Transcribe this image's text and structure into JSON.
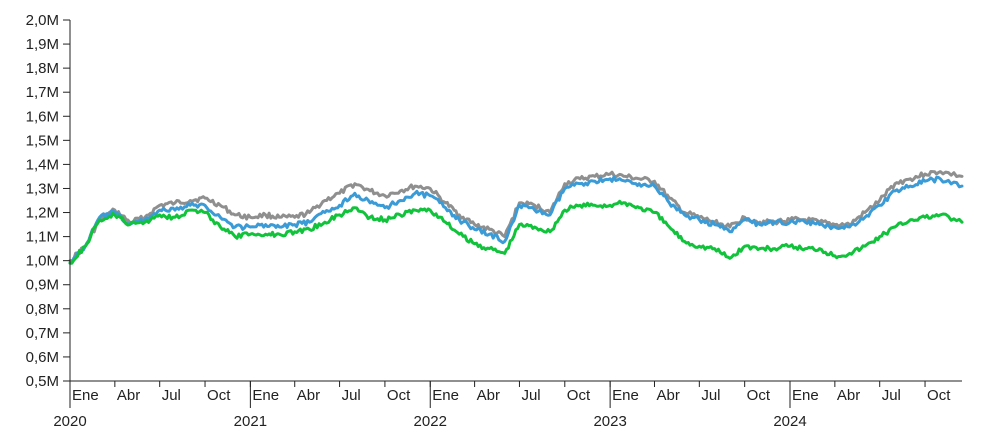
{
  "chart_data": {
    "type": "line",
    "title": "",
    "xlabel": "",
    "ylabel": "",
    "x_range": [
      "2020-01-01",
      "2024-12-15"
    ],
    "ylim": [
      500000,
      2000000
    ],
    "grid": false,
    "legend": "none",
    "y_ticks": [
      {
        "value": 500000,
        "label": "0,5M"
      },
      {
        "value": 600000,
        "label": "0,6M"
      },
      {
        "value": 700000,
        "label": "0,7M"
      },
      {
        "value": 800000,
        "label": "0,8M"
      },
      {
        "value": 900000,
        "label": "0,9M"
      },
      {
        "value": 1000000,
        "label": "1,0M"
      },
      {
        "value": 1100000,
        "label": "1,1M"
      },
      {
        "value": 1200000,
        "label": "1,2M"
      },
      {
        "value": 1300000,
        "label": "1,3M"
      },
      {
        "value": 1400000,
        "label": "1,4M"
      },
      {
        "value": 1500000,
        "label": "1,5M"
      },
      {
        "value": 1600000,
        "label": "1,6M"
      },
      {
        "value": 1700000,
        "label": "1,7M"
      },
      {
        "value": 1800000,
        "label": "1,8M"
      },
      {
        "value": 1900000,
        "label": "1,9M"
      },
      {
        "value": 2000000,
        "label": "2,0M"
      }
    ],
    "x_month_ticks": [
      {
        "date": "2020-01-01",
        "label": "Ene"
      },
      {
        "date": "2020-04-01",
        "label": "Abr"
      },
      {
        "date": "2020-07-01",
        "label": "Jul"
      },
      {
        "date": "2020-10-01",
        "label": "Oct"
      },
      {
        "date": "2021-01-01",
        "label": "Ene"
      },
      {
        "date": "2021-04-01",
        "label": "Abr"
      },
      {
        "date": "2021-07-01",
        "label": "Jul"
      },
      {
        "date": "2021-10-01",
        "label": "Oct"
      },
      {
        "date": "2022-01-01",
        "label": "Ene"
      },
      {
        "date": "2022-04-01",
        "label": "Abr"
      },
      {
        "date": "2022-07-01",
        "label": "Jul"
      },
      {
        "date": "2022-10-01",
        "label": "Oct"
      },
      {
        "date": "2023-01-01",
        "label": "Ene"
      },
      {
        "date": "2023-04-01",
        "label": "Abr"
      },
      {
        "date": "2023-07-01",
        "label": "Jul"
      },
      {
        "date": "2023-10-01",
        "label": "Oct"
      },
      {
        "date": "2024-01-01",
        "label": "Ene"
      },
      {
        "date": "2024-04-01",
        "label": "Abr"
      },
      {
        "date": "2024-07-01",
        "label": "Jul"
      },
      {
        "date": "2024-10-01",
        "label": "Oct"
      }
    ],
    "x_year_ticks": [
      {
        "date": "2020-01-01",
        "label": "2020"
      },
      {
        "date": "2021-01-01",
        "label": "2021"
      },
      {
        "date": "2022-01-01",
        "label": "2022"
      },
      {
        "date": "2023-01-01",
        "label": "2023"
      },
      {
        "date": "2024-01-01",
        "label": "2024"
      }
    ],
    "series": [
      {
        "color": "#8f8f8f",
        "points": [
          [
            "2020-01-01",
            1000000
          ],
          [
            "2020-02-01",
            1060000
          ],
          [
            "2020-03-01",
            1170000
          ],
          [
            "2020-04-01",
            1210000
          ],
          [
            "2020-05-01",
            1160000
          ],
          [
            "2020-06-01",
            1180000
          ],
          [
            "2020-07-01",
            1230000
          ],
          [
            "2020-08-01",
            1240000
          ],
          [
            "2020-09-01",
            1250000
          ],
          [
            "2020-10-01",
            1260000
          ],
          [
            "2020-11-01",
            1230000
          ],
          [
            "2020-12-01",
            1190000
          ],
          [
            "2021-01-01",
            1180000
          ],
          [
            "2021-02-01",
            1190000
          ],
          [
            "2021-03-01",
            1180000
          ],
          [
            "2021-04-01",
            1180000
          ],
          [
            "2021-05-01",
            1200000
          ],
          [
            "2021-06-01",
            1250000
          ],
          [
            "2021-07-01",
            1280000
          ],
          [
            "2021-08-01",
            1320000
          ],
          [
            "2021-09-01",
            1290000
          ],
          [
            "2021-10-01",
            1270000
          ],
          [
            "2021-11-01",
            1290000
          ],
          [
            "2021-12-01",
            1310000
          ],
          [
            "2022-01-01",
            1300000
          ],
          [
            "2022-02-01",
            1240000
          ],
          [
            "2022-03-01",
            1190000
          ],
          [
            "2022-04-01",
            1150000
          ],
          [
            "2022-05-01",
            1130000
          ],
          [
            "2022-06-01",
            1100000
          ],
          [
            "2022-07-01",
            1240000
          ],
          [
            "2022-08-01",
            1230000
          ],
          [
            "2022-09-01",
            1200000
          ],
          [
            "2022-10-01",
            1320000
          ],
          [
            "2022-11-01",
            1340000
          ],
          [
            "2022-12-01",
            1350000
          ],
          [
            "2023-01-01",
            1360000
          ],
          [
            "2023-02-01",
            1350000
          ],
          [
            "2023-03-01",
            1340000
          ],
          [
            "2023-04-01",
            1330000
          ],
          [
            "2023-05-01",
            1260000
          ],
          [
            "2023-06-01",
            1200000
          ],
          [
            "2023-07-01",
            1180000
          ],
          [
            "2023-08-01",
            1160000
          ],
          [
            "2023-09-01",
            1140000
          ],
          [
            "2023-10-01",
            1180000
          ],
          [
            "2023-11-01",
            1160000
          ],
          [
            "2023-12-01",
            1160000
          ],
          [
            "2024-01-01",
            1170000
          ],
          [
            "2024-02-01",
            1170000
          ],
          [
            "2024-03-01",
            1160000
          ],
          [
            "2024-04-01",
            1150000
          ],
          [
            "2024-05-01",
            1150000
          ],
          [
            "2024-06-01",
            1200000
          ],
          [
            "2024-07-01",
            1250000
          ],
          [
            "2024-08-01",
            1320000
          ],
          [
            "2024-09-01",
            1340000
          ],
          [
            "2024-10-01",
            1360000
          ],
          [
            "2024-11-01",
            1370000
          ],
          [
            "2024-12-15",
            1350000
          ]
        ]
      },
      {
        "color": "#3b9bd6",
        "points": [
          [
            "2020-01-01",
            990000
          ],
          [
            "2020-02-01",
            1060000
          ],
          [
            "2020-03-01",
            1180000
          ],
          [
            "2020-04-01",
            1200000
          ],
          [
            "2020-05-01",
            1150000
          ],
          [
            "2020-06-01",
            1170000
          ],
          [
            "2020-07-01",
            1210000
          ],
          [
            "2020-08-01",
            1210000
          ],
          [
            "2020-09-01",
            1230000
          ],
          [
            "2020-10-01",
            1230000
          ],
          [
            "2020-11-01",
            1180000
          ],
          [
            "2020-12-01",
            1140000
          ],
          [
            "2021-01-01",
            1140000
          ],
          [
            "2021-02-01",
            1150000
          ],
          [
            "2021-03-01",
            1140000
          ],
          [
            "2021-04-01",
            1150000
          ],
          [
            "2021-05-01",
            1160000
          ],
          [
            "2021-06-01",
            1200000
          ],
          [
            "2021-07-01",
            1230000
          ],
          [
            "2021-08-01",
            1280000
          ],
          [
            "2021-09-01",
            1240000
          ],
          [
            "2021-10-01",
            1220000
          ],
          [
            "2021-11-01",
            1250000
          ],
          [
            "2021-12-01",
            1280000
          ],
          [
            "2022-01-01",
            1270000
          ],
          [
            "2022-02-01",
            1220000
          ],
          [
            "2022-03-01",
            1170000
          ],
          [
            "2022-04-01",
            1130000
          ],
          [
            "2022-05-01",
            1110000
          ],
          [
            "2022-06-01",
            1080000
          ],
          [
            "2022-07-01",
            1230000
          ],
          [
            "2022-08-01",
            1210000
          ],
          [
            "2022-09-01",
            1190000
          ],
          [
            "2022-10-01",
            1300000
          ],
          [
            "2022-11-01",
            1320000
          ],
          [
            "2022-12-01",
            1330000
          ],
          [
            "2023-01-01",
            1340000
          ],
          [
            "2023-02-01",
            1330000
          ],
          [
            "2023-03-01",
            1320000
          ],
          [
            "2023-04-01",
            1310000
          ],
          [
            "2023-05-01",
            1240000
          ],
          [
            "2023-06-01",
            1190000
          ],
          [
            "2023-07-01",
            1170000
          ],
          [
            "2023-08-01",
            1150000
          ],
          [
            "2023-09-01",
            1120000
          ],
          [
            "2023-10-01",
            1170000
          ],
          [
            "2023-11-01",
            1150000
          ],
          [
            "2023-12-01",
            1160000
          ],
          [
            "2024-01-01",
            1160000
          ],
          [
            "2024-02-01",
            1160000
          ],
          [
            "2024-03-01",
            1150000
          ],
          [
            "2024-04-01",
            1140000
          ],
          [
            "2024-05-01",
            1140000
          ],
          [
            "2024-06-01",
            1180000
          ],
          [
            "2024-07-01",
            1230000
          ],
          [
            "2024-08-01",
            1290000
          ],
          [
            "2024-09-01",
            1310000
          ],
          [
            "2024-10-01",
            1330000
          ],
          [
            "2024-11-01",
            1340000
          ],
          [
            "2024-12-15",
            1310000
          ]
        ]
      },
      {
        "color": "#11c23b",
        "points": [
          [
            "2020-01-01",
            990000
          ],
          [
            "2020-02-01",
            1060000
          ],
          [
            "2020-03-01",
            1170000
          ],
          [
            "2020-04-01",
            1190000
          ],
          [
            "2020-05-01",
            1150000
          ],
          [
            "2020-06-01",
            1160000
          ],
          [
            "2020-07-01",
            1190000
          ],
          [
            "2020-08-01",
            1180000
          ],
          [
            "2020-09-01",
            1210000
          ],
          [
            "2020-10-01",
            1200000
          ],
          [
            "2020-11-01",
            1140000
          ],
          [
            "2020-12-01",
            1100000
          ],
          [
            "2021-01-01",
            1110000
          ],
          [
            "2021-02-01",
            1110000
          ],
          [
            "2021-03-01",
            1110000
          ],
          [
            "2021-04-01",
            1120000
          ],
          [
            "2021-05-01",
            1130000
          ],
          [
            "2021-06-01",
            1160000
          ],
          [
            "2021-07-01",
            1190000
          ],
          [
            "2021-08-01",
            1220000
          ],
          [
            "2021-09-01",
            1180000
          ],
          [
            "2021-10-01",
            1170000
          ],
          [
            "2021-11-01",
            1190000
          ],
          [
            "2021-12-01",
            1210000
          ],
          [
            "2022-01-01",
            1210000
          ],
          [
            "2022-02-01",
            1160000
          ],
          [
            "2022-03-01",
            1110000
          ],
          [
            "2022-04-01",
            1070000
          ],
          [
            "2022-05-01",
            1050000
          ],
          [
            "2022-06-01",
            1030000
          ],
          [
            "2022-07-01",
            1150000
          ],
          [
            "2022-08-01",
            1140000
          ],
          [
            "2022-09-01",
            1120000
          ],
          [
            "2022-10-01",
            1210000
          ],
          [
            "2022-11-01",
            1230000
          ],
          [
            "2022-12-01",
            1230000
          ],
          [
            "2023-01-01",
            1230000
          ],
          [
            "2023-02-01",
            1240000
          ],
          [
            "2023-03-01",
            1220000
          ],
          [
            "2023-04-01",
            1200000
          ],
          [
            "2023-05-01",
            1140000
          ],
          [
            "2023-06-01",
            1080000
          ],
          [
            "2023-07-01",
            1060000
          ],
          [
            "2023-08-01",
            1050000
          ],
          [
            "2023-09-01",
            1010000
          ],
          [
            "2023-10-01",
            1060000
          ],
          [
            "2023-11-01",
            1050000
          ],
          [
            "2023-12-01",
            1050000
          ],
          [
            "2024-01-01",
            1060000
          ],
          [
            "2024-02-01",
            1050000
          ],
          [
            "2024-03-01",
            1050000
          ],
          [
            "2024-04-01",
            1020000
          ],
          [
            "2024-05-01",
            1030000
          ],
          [
            "2024-06-01",
            1060000
          ],
          [
            "2024-07-01",
            1100000
          ],
          [
            "2024-08-01",
            1140000
          ],
          [
            "2024-09-01",
            1170000
          ],
          [
            "2024-10-01",
            1180000
          ],
          [
            "2024-11-01",
            1190000
          ],
          [
            "2024-12-15",
            1160000
          ]
        ]
      }
    ]
  }
}
